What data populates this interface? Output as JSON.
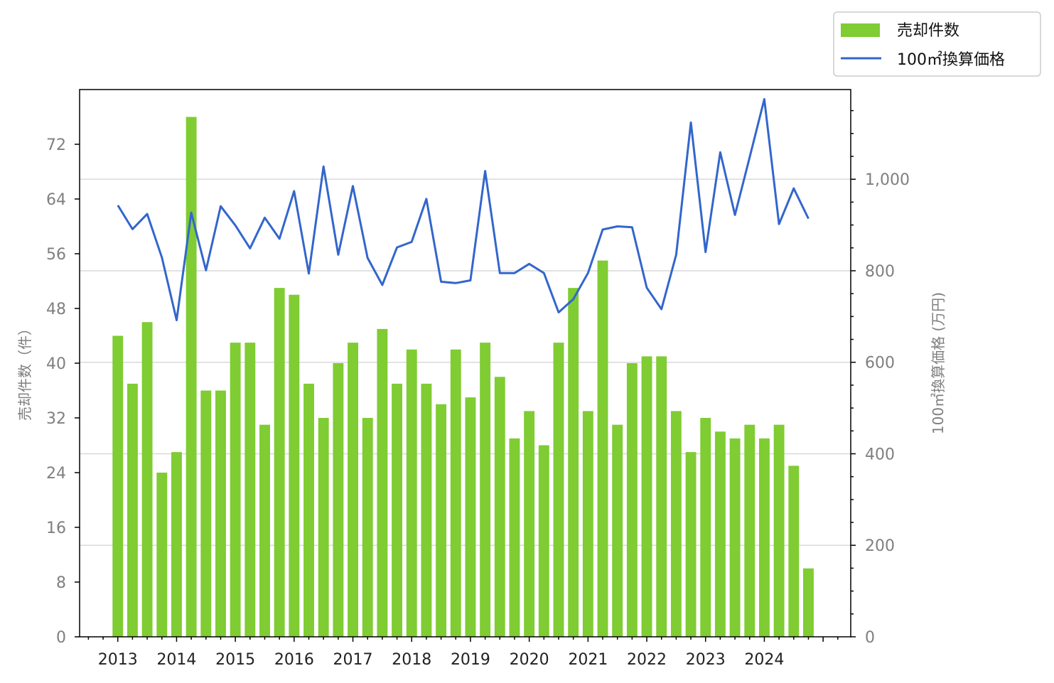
{
  "chart_data": {
    "type": "bar",
    "title": "",
    "x_tick_labels": [
      "2013",
      "2014",
      "2015",
      "2016",
      "2017",
      "2018",
      "2019",
      "2020",
      "2021",
      "2022",
      "2023",
      "2024"
    ],
    "y_left_label": "売却件数（件）",
    "y_left_ticks": [
      0,
      8,
      16,
      24,
      32,
      40,
      48,
      56,
      64,
      72
    ],
    "y_left_tick_labels": [
      "0",
      "8",
      "16",
      "24",
      "32",
      "40",
      "48",
      "56",
      "64",
      "72"
    ],
    "y_left_lim": [
      0,
      80
    ],
    "y_right_label": "100㎡換算価格 (万円)",
    "y_right_ticks": [
      0,
      200,
      400,
      600,
      800,
      1000
    ],
    "y_right_tick_labels": [
      "0",
      "200",
      "400",
      "600",
      "800",
      "1,000"
    ],
    "y_right_lim": [
      0,
      1196
    ],
    "grid": "horizontal, right axis",
    "legend_position": "top-right, outside",
    "bar_color": "#7fcc33",
    "line_color": "#3366cc",
    "series": [
      {
        "name": "売却件数",
        "kind": "bar",
        "axis": "left",
        "x": [
          2013.0,
          2013.25,
          2013.5,
          2013.75,
          2014.0,
          2014.25,
          2014.5,
          2014.75,
          2015.0,
          2015.25,
          2015.5,
          2015.75,
          2016.0,
          2016.25,
          2016.5,
          2016.75,
          2017.0,
          2017.25,
          2017.5,
          2017.75,
          2018.0,
          2018.25,
          2018.5,
          2018.75,
          2019.0,
          2019.25,
          2019.5,
          2019.75,
          2020.0,
          2020.25,
          2020.5,
          2020.75,
          2021.0,
          2021.25,
          2021.5,
          2021.75,
          2022.0,
          2022.25,
          2022.5,
          2022.75,
          2023.0,
          2023.25,
          2023.5,
          2023.75,
          2024.0,
          2024.25,
          2024.5,
          2024.75
        ],
        "values": [
          44,
          37,
          46,
          24,
          27,
          76,
          36,
          36,
          43,
          43,
          31,
          51,
          50,
          37,
          32,
          40,
          43,
          32,
          45,
          37,
          42,
          37,
          34,
          42,
          35,
          43,
          38,
          29,
          33,
          28,
          43,
          51,
          33,
          55,
          31,
          40,
          41,
          41,
          33,
          27,
          32,
          30,
          29,
          31,
          29,
          31,
          25,
          10
        ]
      },
      {
        "name": "100㎡換算価格",
        "kind": "line",
        "axis": "right",
        "x": [
          2013.0,
          2013.25,
          2013.5,
          2013.75,
          2014.0,
          2014.25,
          2014.5,
          2014.75,
          2015.0,
          2015.25,
          2015.5,
          2015.75,
          2016.0,
          2016.25,
          2016.5,
          2016.75,
          2017.0,
          2017.25,
          2017.5,
          2017.75,
          2018.0,
          2018.25,
          2018.5,
          2018.75,
          2019.0,
          2019.25,
          2019.5,
          2019.75,
          2020.0,
          2020.25,
          2020.5,
          2020.75,
          2021.0,
          2021.25,
          2021.5,
          2021.75,
          2022.0,
          2022.25,
          2022.5,
          2022.75,
          2023.0,
          2023.25,
          2023.5,
          2023.75,
          2024.0,
          2024.25,
          2024.5,
          2024.75
        ],
        "values": [
          943,
          891,
          924,
          829,
          692,
          927,
          801,
          941,
          899,
          849,
          916,
          870,
          974,
          794,
          1028,
          835,
          985,
          828,
          769,
          851,
          863,
          957,
          776,
          773,
          779,
          1018,
          795,
          795,
          815,
          795,
          709,
          738,
          795,
          890,
          897,
          895,
          763,
          716,
          835,
          1124,
          841,
          1059,
          922,
          1048,
          1175,
          902,
          980,
          914
        ]
      }
    ]
  }
}
